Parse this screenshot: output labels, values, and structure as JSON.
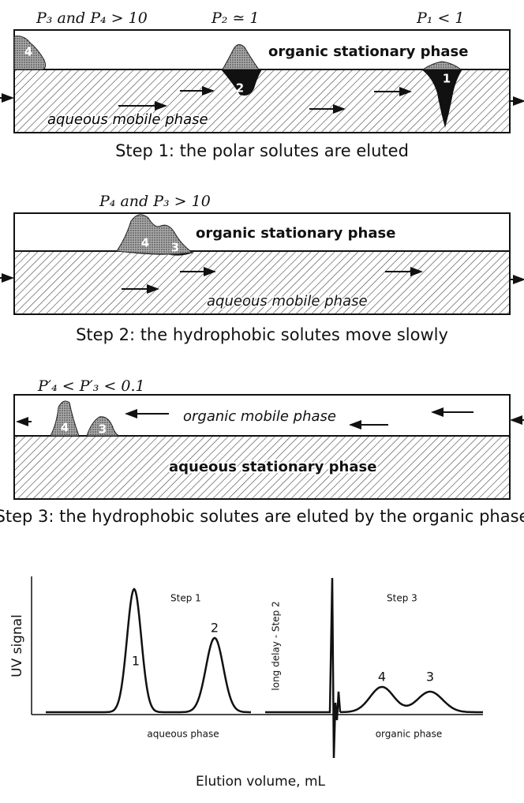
{
  "panels": [
    {
      "labels": [
        "P₃ and P₄ > 10",
        "P₂ ≃ 1",
        "P₁ < 1"
      ],
      "top_phase": "organic stationary phase",
      "bottom_phase": "aqueous mobile phase",
      "solutes": [
        "4",
        "2",
        "1"
      ],
      "caption": "Step 1: the polar solutes are eluted"
    },
    {
      "labels": [
        "P₄ and P₃ > 10"
      ],
      "top_phase": "organic stationary phase",
      "bottom_phase": "aqueous mobile phase",
      "solutes": [
        "4",
        "3"
      ],
      "caption": "Step 2: the hydrophobic solutes move slowly"
    },
    {
      "labels": [
        "P′₄ < P′₃ < 0.1"
      ],
      "top_phase": "organic mobile phase",
      "bottom_phase": "aqueous stationary phase",
      "solutes": [
        "4",
        "3"
      ],
      "caption": "Step 3: the hydrophobic solutes are eluted by the organic phase"
    }
  ],
  "chromatogram": {
    "y_axis_label": "UV signal",
    "x_axis_label": "Elution volume, mL",
    "step_labels": [
      "Step 1",
      "Step 3"
    ],
    "delay_label": "long delay - Step 2",
    "peak_labels": [
      "1",
      "2",
      "4",
      "3"
    ],
    "phase_labels": [
      "aqueous phase",
      "organic phase"
    ]
  }
}
